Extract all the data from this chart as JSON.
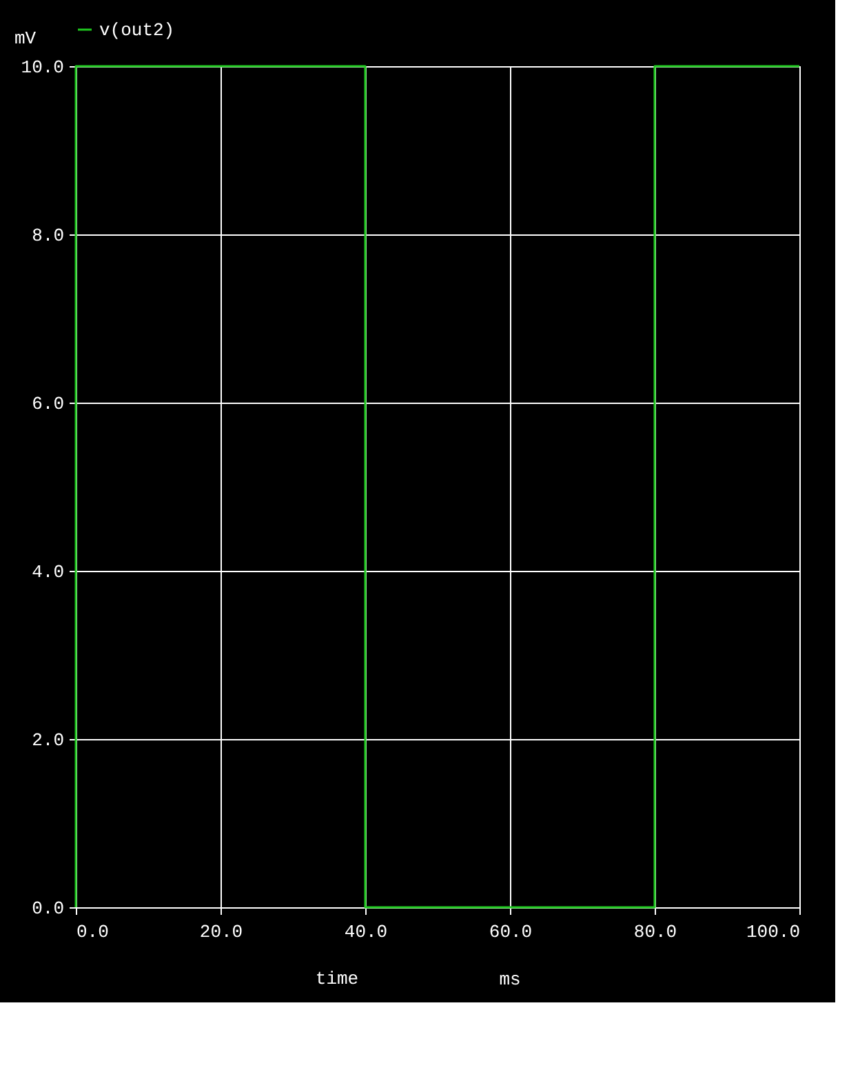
{
  "chart_data": {
    "type": "line",
    "xlabel": "time",
    "ylabel": "mV",
    "annotations": [
      "ms"
    ],
    "x": [
      0,
      0,
      40,
      40,
      80,
      80,
      100
    ],
    "series": [
      {
        "name": "v(out2)",
        "color": "#1fc81f",
        "values": [
          0,
          10,
          10,
          0,
          0,
          10,
          10
        ]
      }
    ],
    "xlim": [
      0,
      100
    ],
    "ylim": [
      0,
      10
    ],
    "xticks": [
      {
        "value": 0,
        "label": "0.0"
      },
      {
        "value": 20,
        "label": "20.0"
      },
      {
        "value": 40,
        "label": "40.0"
      },
      {
        "value": 60,
        "label": "60.0"
      },
      {
        "value": 80,
        "label": "80.0"
      },
      {
        "value": 100,
        "label": "100.0"
      }
    ],
    "yticks": [
      {
        "value": 0,
        "label": "0.0"
      },
      {
        "value": 2,
        "label": "2.0"
      },
      {
        "value": 4,
        "label": "4.0"
      },
      {
        "value": 6,
        "label": "6.0"
      },
      {
        "value": 8,
        "label": "8.0"
      },
      {
        "value": 10,
        "label": "10.0"
      }
    ],
    "grid": true,
    "legend": "top",
    "marker": "none",
    "line_style": "solid"
  }
}
